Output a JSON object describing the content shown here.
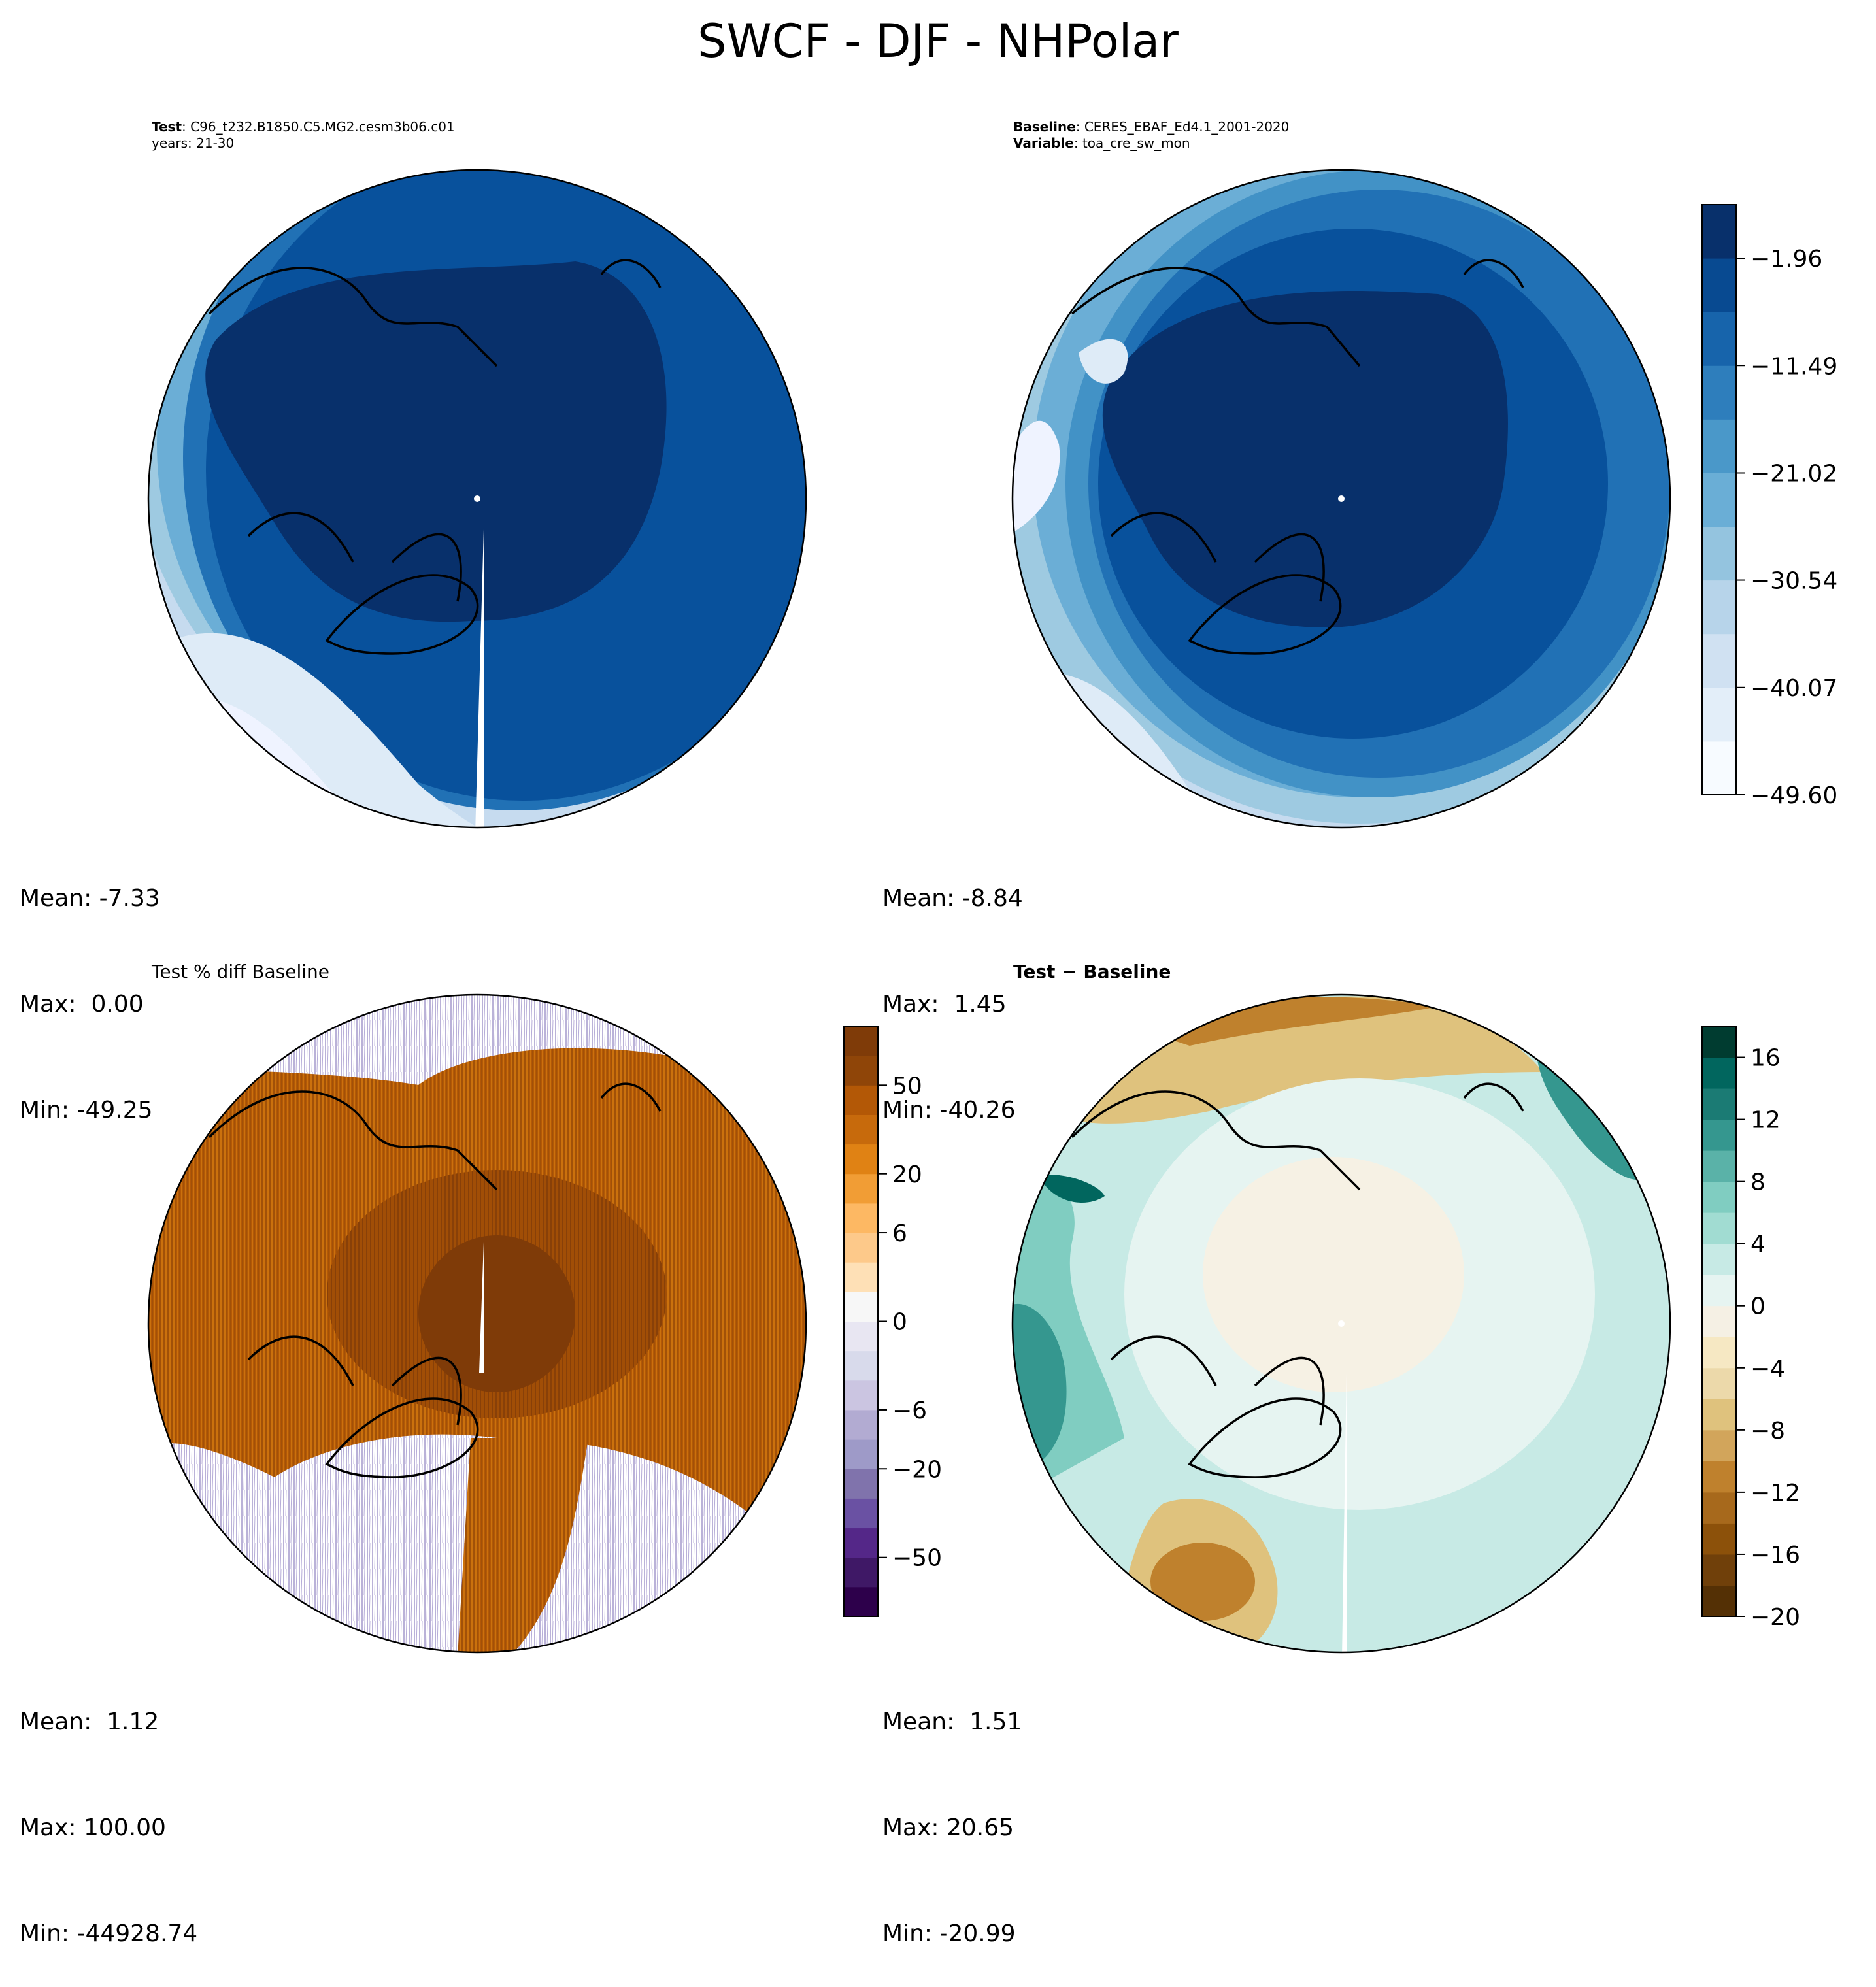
{
  "chart_data": {
    "type": "contour",
    "title": "SWCF - DJF - NHPolar",
    "projection": "north polar stereographic",
    "panels": [
      {
        "id": "test",
        "label": "Test",
        "name": "C96_t232.B1850.C5.MG2.cesm3b06.c01",
        "years": "years: 21-30",
        "colormap": "Blues_r",
        "stats": {
          "mean": "Mean: -7.33",
          "max": "Max:  0.00",
          "min": "Min: -49.25"
        },
        "colorbar": null
      },
      {
        "id": "baseline",
        "label": "Baseline",
        "name": "CERES_EBAF_Ed4.1_2001-2020",
        "variable_label": "Variable",
        "variable": "toa_cre_sw_mon",
        "colormap": "Blues_r",
        "stats": {
          "mean": "Mean: -8.84",
          "max": "Max:  1.45",
          "min": "Min: -40.26"
        },
        "colorbar": {
          "ticks": [
            "-1.96",
            "-11.49",
            "-21.02",
            "-30.54",
            "-40.07",
            "-49.60"
          ],
          "range": [
            -49.6,
            2.8
          ]
        }
      },
      {
        "id": "pct_diff",
        "title": "Test % diff Baseline",
        "colormap": "PuOr_r",
        "stats": {
          "mean": "Mean:  1.12",
          "max": "Max: 100.00",
          "min": "Min: -44928.74"
        },
        "colorbar": {
          "ticks": [
            "50",
            "20",
            "6",
            "0",
            "-6",
            "-20",
            "-50"
          ],
          "range": [
            -100,
            100
          ]
        }
      },
      {
        "id": "diff",
        "title_left": "Test",
        "title_sep": "−",
        "title_right": "Baseline",
        "colormap": "BrBG",
        "stats": {
          "mean": "Mean:  1.51",
          "max": "Max: 20.65",
          "min": "Min: -20.99"
        },
        "colorbar": {
          "ticks": [
            "16",
            "12",
            "8",
            "4",
            "0",
            "-4",
            "-8",
            "-12",
            "-16",
            "-20"
          ],
          "range": [
            -20,
            18
          ]
        }
      }
    ]
  }
}
